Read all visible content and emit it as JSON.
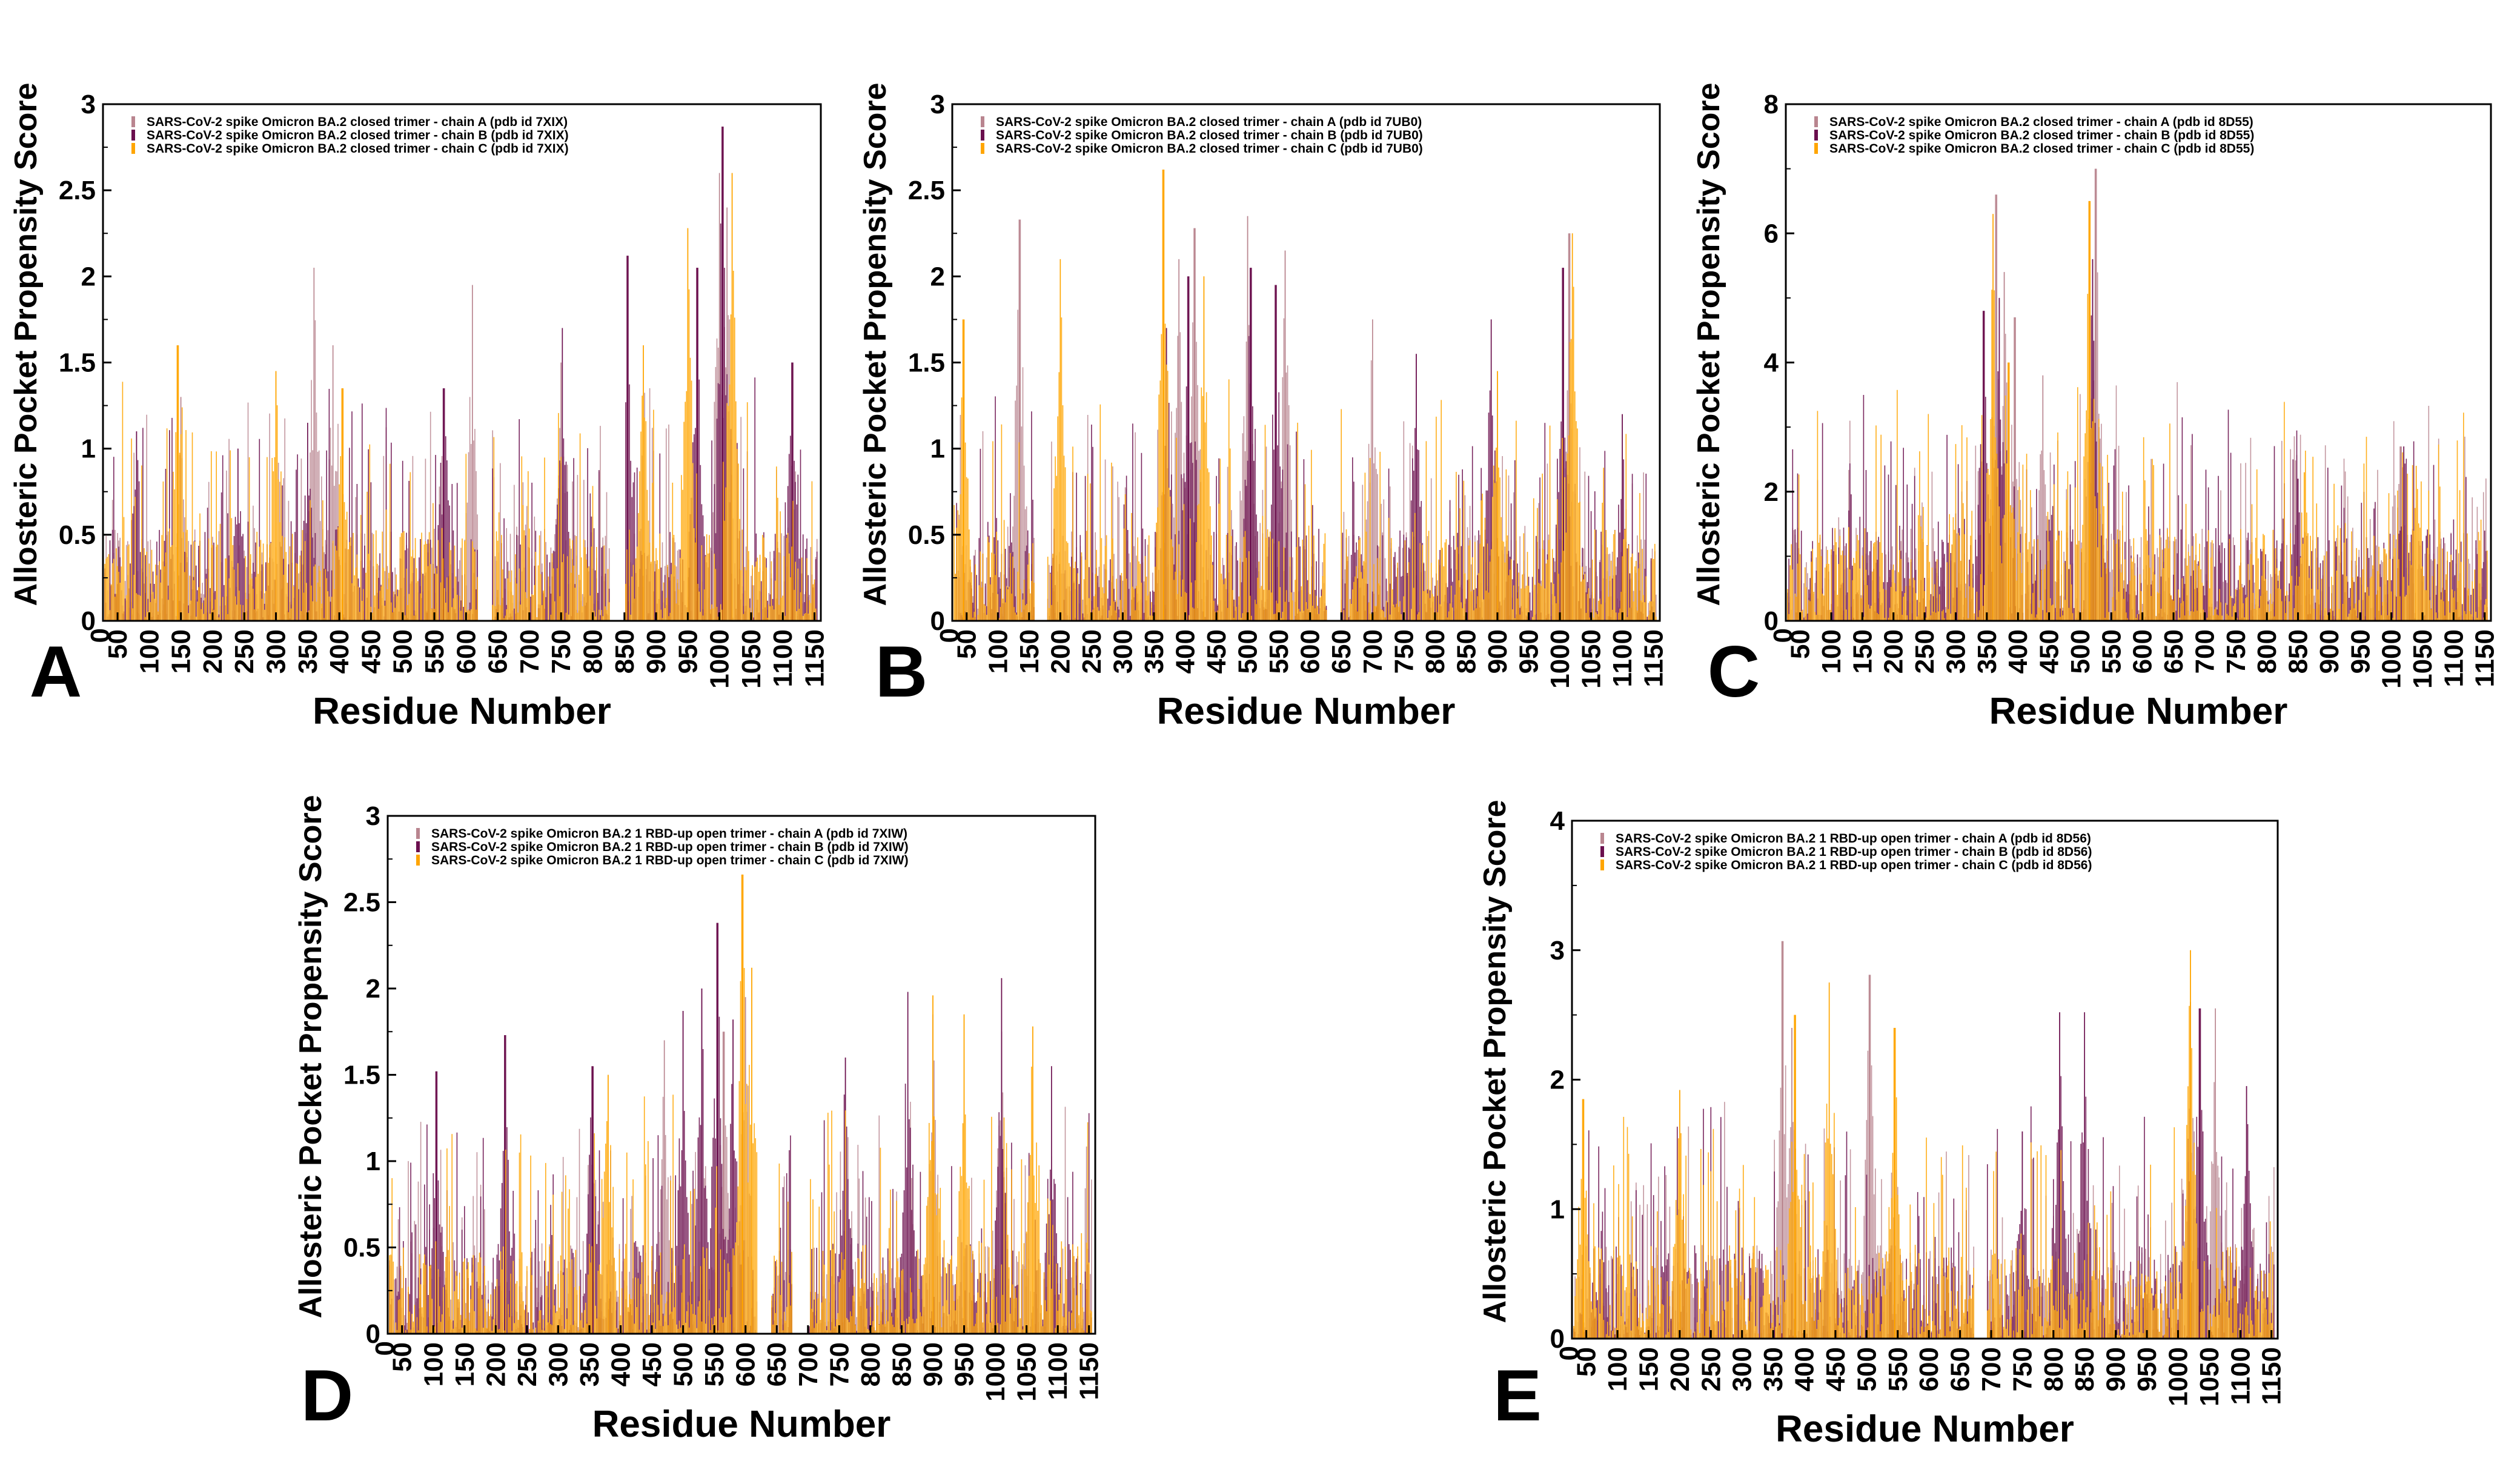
{
  "colors": {
    "chain_a": "#b9858f",
    "chain_b": "#6b0f4e",
    "chain_c": "#ffa500",
    "axis": "#000000"
  },
  "chart_data": [
    {
      "type": "bar",
      "panel_label": "A",
      "xlabel": "Residue Number",
      "ylabel": "Allosteric Pocket  Propensity Score",
      "xlim": [
        27,
        1160
      ],
      "ylim": [
        0,
        3
      ],
      "yticks": [
        0,
        0.5,
        1,
        1.5,
        2,
        2.5,
        3
      ],
      "ytick_labels": [
        "0",
        "0.5",
        "1",
        "1.5",
        "2",
        "2.5",
        "3"
      ],
      "xticks": [
        50,
        100,
        150,
        200,
        250,
        300,
        350,
        400,
        450,
        500,
        550,
        600,
        650,
        700,
        750,
        800,
        850,
        900,
        950,
        1000,
        1050,
        1100,
        1150
      ],
      "gaps": [
        [
          620,
          640
        ],
        [
          827,
          850
        ]
      ],
      "series": [
        {
          "name": "SARS-CoV-2 spike Omicron BA.2 closed trimer - chain A (pdb id 7XIX)",
          "peaks": [
            [
              150,
              1.3
            ],
            [
              360,
              2.05
            ],
            [
              390,
              1.6
            ],
            [
              610,
              1.95
            ],
            [
              750,
              1.5
            ],
            [
              1000,
              2.6
            ],
            [
              1012,
              2.4
            ]
          ]
        },
        {
          "name": "SARS-CoV-2 spike Omicron BA.2 closed trimer - chain B (pdb id 7XIX)",
          "peaks": [
            [
              80,
              1.1
            ],
            [
              240,
              1.0
            ],
            [
              350,
              1.15
            ],
            [
              565,
              1.35
            ],
            [
              752,
              1.7
            ],
            [
              855,
              2.12
            ],
            [
              965,
              2.05
            ],
            [
              1005,
              2.87
            ],
            [
              1115,
              1.5
            ]
          ]
        },
        {
          "name": "SARS-CoV-2 spike Omicron BA.2 closed trimer - chain C (pdb id 7XIX)",
          "peaks": [
            [
              145,
              1.6
            ],
            [
              300,
              1.45
            ],
            [
              405,
              1.35
            ],
            [
              880,
              1.6
            ],
            [
              950,
              2.28
            ],
            [
              1020,
              2.6
            ]
          ]
        }
      ]
    },
    {
      "type": "bar",
      "panel_label": "B",
      "xlabel": "Residue Number",
      "ylabel": "Allosteric Pocket  Propensity Score",
      "xlim": [
        27,
        1160
      ],
      "ylim": [
        0,
        3
      ],
      "yticks": [
        0,
        0.5,
        1,
        1.5,
        2,
        2.5,
        3
      ],
      "ytick_labels": [
        "0",
        "0.5",
        "1",
        "1.5",
        "2",
        "2.5",
        "3"
      ],
      "xticks": [
        50,
        100,
        150,
        200,
        250,
        300,
        350,
        400,
        450,
        500,
        550,
        600,
        650,
        700,
        750,
        800,
        850,
        900,
        950,
        1000,
        1050,
        1100,
        1150
      ],
      "gaps": [
        [
          160,
          178
        ],
        [
          628,
          648
        ]
      ],
      "series": [
        {
          "name": "SARS-CoV-2 spike Omicron BA.2 closed trimer - chain A (pdb id 7UB0)",
          "peaks": [
            [
              135,
              2.33
            ],
            [
              390,
              2.1
            ],
            [
              415,
              2.28
            ],
            [
              500,
              2.35
            ],
            [
              560,
              2.15
            ],
            [
              700,
              1.75
            ],
            [
              1015,
              2.25
            ]
          ]
        },
        {
          "name": "SARS-CoV-2 spike Omicron BA.2 closed trimer - chain B (pdb id 7UB0)",
          "peaks": [
            [
              370,
              1.7
            ],
            [
              405,
              2.0
            ],
            [
              505,
              2.05
            ],
            [
              545,
              1.95
            ],
            [
              770,
              1.55
            ],
            [
              890,
              1.75
            ],
            [
              1005,
              2.05
            ],
            [
              1100,
              1.2
            ]
          ]
        },
        {
          "name": "SARS-CoV-2 spike Omicron BA.2 closed trimer - chain C (pdb id 7UB0)",
          "peaks": [
            [
              45,
              1.75
            ],
            [
              200,
              2.1
            ],
            [
              365,
              2.62
            ],
            [
              430,
              2.0
            ],
            [
              900,
              1.45
            ],
            [
              1020,
              2.25
            ]
          ]
        }
      ]
    },
    {
      "type": "bar",
      "panel_label": "C",
      "xlabel": "Residue Number",
      "ylabel": "Allosteric Pocket  Propensity Score",
      "xlim": [
        27,
        1160
      ],
      "ylim": [
        0,
        8
      ],
      "yticks": [
        0,
        2,
        4,
        6,
        8
      ],
      "ytick_labels": [
        "0",
        "2",
        "4",
        "6",
        "8"
      ],
      "xticks": [
        50,
        100,
        150,
        200,
        250,
        300,
        350,
        400,
        450,
        500,
        550,
        600,
        650,
        700,
        750,
        800,
        850,
        900,
        950,
        1000,
        1050,
        1100,
        1150
      ],
      "gaps": [],
      "series": [
        {
          "name": "SARS-CoV-2 spike Omicron BA.2 closed trimer - chain A (pdb id 8D55)",
          "peaks": [
            [
              365,
              6.6
            ],
            [
              378,
              5.4
            ],
            [
              395,
              4.7
            ],
            [
              440,
              3.8
            ],
            [
              525,
              7.0
            ],
            [
              1015,
              2.7
            ]
          ]
        },
        {
          "name": "SARS-CoV-2 spike Omicron BA.2 closed trimer - chain B (pdb id 8D55)",
          "peaks": [
            [
              345,
              4.8
            ],
            [
              370,
              5.0
            ],
            [
              520,
              5.6
            ],
            [
              530,
              3.0
            ],
            [
              850,
              2.2
            ],
            [
              1020,
              2.7
            ]
          ]
        },
        {
          "name": "SARS-CoV-2 spike Omicron BA.2 closed trimer - chain C (pdb id 8D55)",
          "peaks": [
            [
              360,
              6.3
            ],
            [
              385,
              4.0
            ],
            [
              515,
              6.5
            ],
            [
              860,
              2.3
            ],
            [
              1040,
              2.4
            ]
          ]
        }
      ]
    },
    {
      "type": "bar",
      "panel_label": "D",
      "xlabel": "Residue Number",
      "ylabel": "Allosteric Pocket  Propensity Score",
      "xlim": [
        27,
        1160
      ],
      "ylim": [
        0,
        3
      ],
      "yticks": [
        0,
        0.5,
        1,
        1.5,
        2,
        2.5,
        3
      ],
      "ytick_labels": [
        "0",
        "0.5",
        "1",
        "1.5",
        "2",
        "2.5",
        "3"
      ],
      "xticks": [
        50,
        100,
        150,
        200,
        250,
        300,
        350,
        400,
        450,
        500,
        550,
        600,
        650,
        700,
        750,
        800,
        850,
        900,
        950,
        1000,
        1050,
        1100,
        1150
      ],
      "gaps": [
        [
          620,
          640
        ],
        [
          675,
          700
        ]
      ],
      "series": [
        {
          "name": "SARS-CoV-2 spike Omicron BA.2 1 RBD-up open trimer - chain A (pdb id 7XIW)",
          "peaks": [
            [
              470,
              1.7
            ],
            [
              565,
              1.75
            ],
            [
              600,
              1.95
            ],
            [
              900,
              1.85
            ],
            [
              1010,
              1.75
            ]
          ]
        },
        {
          "name": "SARS-CoV-2 spike Omicron BA.2 1 RBD-up open trimer - chain B (pdb id 7XIW)",
          "peaks": [
            [
              105,
              1.52
            ],
            [
              215,
              1.73
            ],
            [
              355,
              1.55
            ],
            [
              500,
              1.87
            ],
            [
              530,
              2.0
            ],
            [
              555,
              2.38
            ],
            [
              580,
              1.82
            ],
            [
              760,
              1.6
            ],
            [
              860,
              1.98
            ],
            [
              1010,
              2.06
            ],
            [
              1090,
              1.55
            ]
          ]
        },
        {
          "name": "SARS-CoV-2 spike Omicron BA.2 1 RBD-up open trimer - chain C (pdb id 7XIW)",
          "peaks": [
            [
              380,
              1.5
            ],
            [
              595,
              2.66
            ],
            [
              610,
              2.12
            ],
            [
              900,
              1.96
            ],
            [
              950,
              1.85
            ],
            [
              1060,
              1.78
            ]
          ]
        }
      ]
    },
    {
      "type": "bar",
      "panel_label": "E",
      "xlabel": "Residue Number",
      "ylabel": "Allosteric Pocket  Propensity Score",
      "xlim": [
        27,
        1160
      ],
      "ylim": [
        0,
        4
      ],
      "yticks": [
        0,
        1,
        2,
        3,
        4
      ],
      "ytick_labels": [
        "0",
        "1",
        "2",
        "3",
        "4"
      ],
      "xticks": [
        50,
        100,
        150,
        200,
        250,
        300,
        350,
        400,
        450,
        500,
        550,
        600,
        650,
        700,
        750,
        800,
        850,
        900,
        950,
        1000,
        1050,
        1100,
        1150
      ],
      "gaps": [
        [
          673,
          693
        ]
      ],
      "series": [
        {
          "name": "SARS-CoV-2 spike Omicron BA.2 1 RBD-up open trimer - chain A (pdb id 8D56)",
          "peaks": [
            [
              365,
              3.07
            ],
            [
              505,
              2.81
            ],
            [
              380,
              2.4
            ],
            [
              1020,
              2.6
            ],
            [
              1060,
              2.55
            ]
          ]
        },
        {
          "name": "SARS-CoV-2 spike Omicron BA.2 1 RBD-up open trimer - chain B (pdb id 8D56)",
          "peaks": [
            [
              810,
              2.52
            ],
            [
              850,
              2.52
            ],
            [
              1035,
              2.55
            ],
            [
              1110,
              1.95
            ],
            [
              750,
              1.6
            ]
          ]
        },
        {
          "name": "SARS-CoV-2 spike Omicron BA.2 1 RBD-up open trimer - chain C (pdb id 8D56)",
          "peaks": [
            [
              45,
              1.85
            ],
            [
              200,
              1.92
            ],
            [
              385,
              2.5
            ],
            [
              440,
              2.75
            ],
            [
              545,
              2.4
            ],
            [
              1020,
              3.0
            ]
          ]
        }
      ]
    }
  ]
}
